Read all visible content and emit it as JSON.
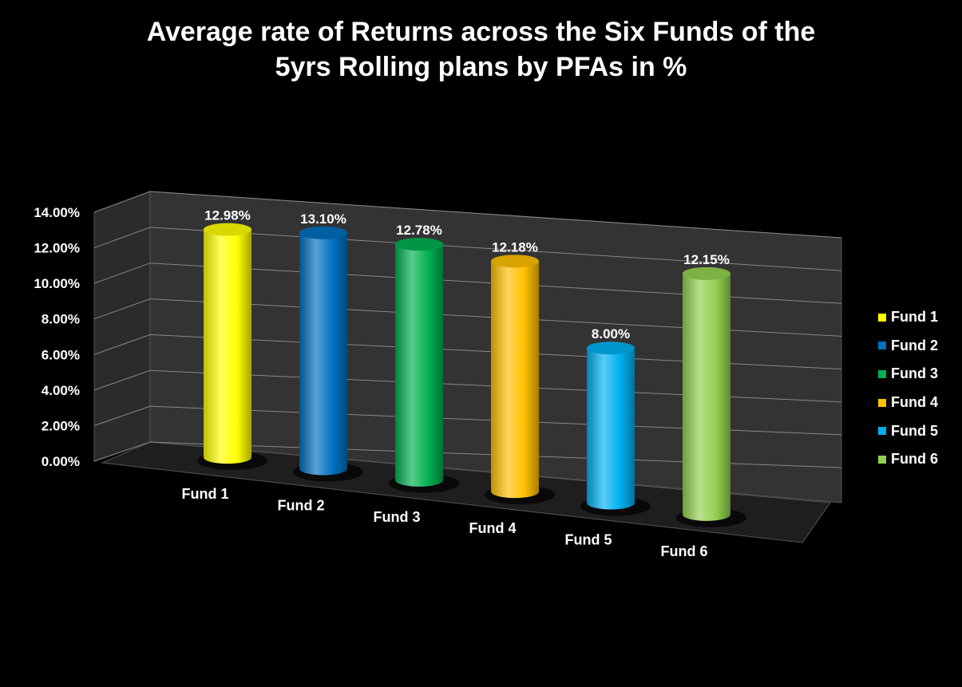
{
  "title_line1": "Average rate of Returns across the Six Funds of the",
  "title_line2": "5yrs Rolling plans by PFAs in %",
  "chart_data": {
    "type": "bar",
    "title": "Average rate of Returns across the Six Funds of the 5yrs Rolling plans by PFAs in %",
    "categories": [
      "Fund 1",
      "Fund 2",
      "Fund 3",
      "Fund 4",
      "Fund 5",
      "Fund 6"
    ],
    "values": [
      12.98,
      13.1,
      12.78,
      12.18,
      8.0,
      12.15
    ],
    "data_labels": [
      "12.98%",
      "13.10%",
      "12.78%",
      "12.18%",
      "8.00%",
      "12.15%"
    ],
    "y_ticks": [
      "0.00%",
      "2.00%",
      "4.00%",
      "6.00%",
      "8.00%",
      "10.00%",
      "12.00%",
      "14.00%"
    ],
    "ylim": [
      0,
      14
    ],
    "xlabel": "",
    "ylabel": "",
    "grid": true,
    "legend_position": "right",
    "style": "3d-cylinder",
    "colors": [
      "#ffff00",
      "#0070c0",
      "#00b050",
      "#ffc000",
      "#00b0f0",
      "#92d050"
    ]
  },
  "legend": {
    "items": [
      "Fund 1",
      "Fund 2",
      "Fund 3",
      "Fund 4",
      "Fund 5",
      "Fund 6"
    ]
  }
}
